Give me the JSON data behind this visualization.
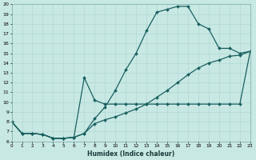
{
  "xlabel": "Humidex (Indice chaleur)",
  "xlim": [
    0,
    23
  ],
  "ylim": [
    6,
    20
  ],
  "xticks": [
    0,
    1,
    2,
    3,
    4,
    5,
    6,
    7,
    8,
    9,
    10,
    11,
    12,
    13,
    14,
    15,
    16,
    17,
    18,
    19,
    20,
    21,
    22,
    23
  ],
  "yticks": [
    6,
    7,
    8,
    9,
    10,
    11,
    12,
    13,
    14,
    15,
    16,
    17,
    18,
    19,
    20
  ],
  "bg_color": "#c8e8e4",
  "line_color": "#1a6060",
  "grid_color": "#b0d8d4",
  "curve1_x": [
    0,
    1,
    2,
    3,
    4,
    5,
    6,
    7,
    8,
    9,
    10,
    11,
    12,
    13,
    14,
    15,
    16,
    17,
    18,
    19,
    20,
    21,
    22,
    23
  ],
  "curve1_y": [
    8.0,
    6.8,
    6.8,
    6.7,
    6.3,
    6.3,
    6.4,
    6.8,
    8.3,
    9.5,
    11.2,
    13.3,
    15.0,
    17.3,
    19.2,
    19.5,
    19.8,
    19.8,
    18.0,
    17.5,
    15.5,
    15.5,
    15.0,
    15.2
  ],
  "curve2_x": [
    0,
    1,
    2,
    3,
    4,
    5,
    6,
    7,
    8,
    9,
    10,
    11,
    12,
    13,
    14,
    15,
    16,
    17,
    18,
    19,
    20,
    21,
    22,
    23
  ],
  "curve2_y": [
    8.0,
    6.8,
    6.8,
    6.7,
    6.3,
    6.3,
    6.4,
    12.5,
    10.2,
    9.8,
    9.8,
    9.8,
    9.8,
    9.8,
    9.8,
    9.8,
    9.8,
    9.8,
    9.8,
    9.8,
    9.8,
    9.8,
    9.8,
    15.2
  ],
  "curve3_x": [
    0,
    1,
    2,
    3,
    4,
    5,
    6,
    7,
    8,
    9,
    10,
    11,
    12,
    13,
    14,
    15,
    16,
    17,
    18,
    19,
    20,
    21,
    22,
    23
  ],
  "curve3_y": [
    8.0,
    6.8,
    6.8,
    6.7,
    6.3,
    6.3,
    6.4,
    6.8,
    7.8,
    8.2,
    8.5,
    8.9,
    9.3,
    9.8,
    10.5,
    11.2,
    12.0,
    12.8,
    13.5,
    14.0,
    14.3,
    14.7,
    14.8,
    15.2
  ],
  "line_width": 0.9,
  "marker": "D",
  "marker_size": 2.0
}
